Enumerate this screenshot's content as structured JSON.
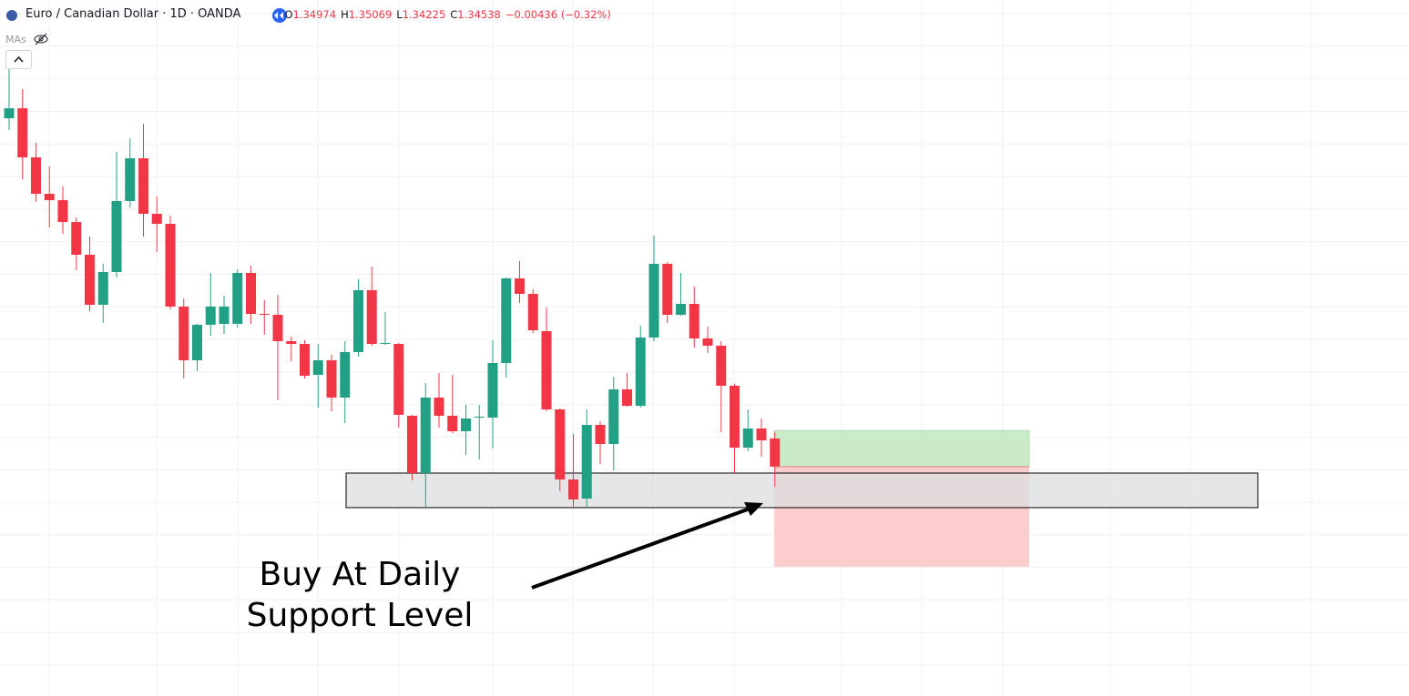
{
  "header": {
    "symbol": "Euro / Canadian Dollar · 1D · OANDA",
    "ohlc_letters": [
      "O",
      "H",
      "L",
      "C"
    ],
    "change": "−0.00436 (−0.32%)",
    "indicator": "MAs"
  },
  "chart_data": {
    "type": "candlestick",
    "categories": [
      null,
      null,
      null,
      null,
      null,
      null,
      null,
      null,
      null,
      null,
      null,
      null,
      null,
      null,
      null,
      null,
      null,
      null,
      null,
      null,
      null,
      null,
      null,
      null,
      null,
      null,
      null,
      null,
      null,
      null,
      null,
      null,
      null,
      null,
      null,
      null,
      null,
      null,
      null,
      null,
      null,
      null,
      null,
      null,
      null,
      null,
      null,
      null,
      null,
      null,
      null,
      null,
      null,
      null,
      null,
      null,
      null,
      null
    ],
    "open": [
      1.39922,
      1.40077,
      1.39318,
      1.38755,
      1.38657,
      1.38319,
      1.37813,
      1.3704,
      1.37546,
      1.38643,
      1.39304,
      1.38446,
      1.38291,
      1.37012,
      1.36182,
      1.36731,
      1.36745,
      1.36745,
      1.37532,
      1.36899,
      1.36885,
      1.36478,
      1.36435,
      1.35957,
      1.36182,
      1.35606,
      1.36309,
      1.37265,
      1.36435,
      1.36435,
      1.35325,
      1.34439,
      1.35606,
      1.35325,
      1.35086,
      1.35296,
      1.35296,
      1.3614,
      1.37448,
      1.37209,
      1.36632,
      1.35423,
      1.3434,
      1.34045,
      1.35184,
      1.34889,
      1.35732,
      1.35479,
      1.36534,
      1.37673,
      1.36885,
      1.37054,
      1.3652,
      1.36407,
      1.35789,
      1.34832,
      1.35128,
      1.34974
    ],
    "high": [
      1.40696,
      1.40372,
      1.39543,
      1.39177,
      1.38868,
      1.3839,
      1.38094,
      1.37673,
      1.39402,
      1.39613,
      1.39838,
      1.38713,
      1.38418,
      1.37138,
      1.36745,
      1.37532,
      1.37181,
      1.37588,
      1.37645,
      1.3711,
      1.37195,
      1.36548,
      1.36492,
      1.36435,
      1.36267,
      1.36478,
      1.37434,
      1.3763,
      1.36927,
      1.36449,
      1.35339,
      1.35831,
      1.35985,
      1.35957,
      1.35493,
      1.35493,
      1.36492,
      1.37462,
      1.37715,
      1.37279,
      1.36998,
      1.35437,
      1.35043,
      1.35423,
      1.3524,
      1.35929,
      1.35985,
      1.36717,
      1.38109,
      1.37701,
      1.37532,
      1.37321,
      1.36702,
      1.36478,
      1.35817,
      1.35423,
      1.35282,
      1.35069
    ],
    "low": [
      1.39739,
      1.3898,
      1.38629,
      1.38235,
      1.38137,
      1.37574,
      1.36942,
      1.36759,
      1.37462,
      1.38544,
      1.38094,
      1.37855,
      1.3697,
      1.35901,
      1.36014,
      1.36562,
      1.3659,
      1.36688,
      1.36745,
      1.36576,
      1.35564,
      1.36168,
      1.35901,
      1.35451,
      1.35395,
      1.35212,
      1.36239,
      1.36407,
      1.36421,
      1.35142,
      1.34326,
      1.33919,
      1.35142,
      1.35057,
      1.3472,
      1.3465,
      1.34818,
      1.35915,
      1.37068,
      1.36604,
      1.35395,
      1.34158,
      1.33919,
      1.33919,
      1.34579,
      1.34481,
      1.35465,
      1.35451,
      1.36478,
      1.36759,
      1.36871,
      1.36379,
      1.36295,
      1.35071,
      1.34439,
      1.34776,
      1.34692,
      1.34225
    ],
    "close": [
      1.40077,
      1.39318,
      1.38755,
      1.38657,
      1.38319,
      1.37813,
      1.3704,
      1.37546,
      1.38643,
      1.39304,
      1.38446,
      1.38291,
      1.37012,
      1.36182,
      1.36731,
      1.37012,
      1.37012,
      1.37532,
      1.36899,
      1.36885,
      1.36478,
      1.36435,
      1.35943,
      1.36182,
      1.35606,
      1.36309,
      1.37265,
      1.36435,
      1.36449,
      1.35339,
      1.34439,
      1.35606,
      1.35325,
      1.35086,
      1.35282,
      1.35311,
      1.3614,
      1.37448,
      1.37209,
      1.36646,
      1.35423,
      1.3434,
      1.34031,
      1.35184,
      1.34889,
      1.35732,
      1.35479,
      1.36534,
      1.37673,
      1.36885,
      1.37054,
      1.3652,
      1.36407,
      1.35789,
      1.34832,
      1.35128,
      1.34945,
      1.34538
    ],
    "up_color": "#22a085",
    "down_color": "#f23645",
    "ylim": [
      1.30994,
      1.4175
    ],
    "support_zone": {
      "ylim": [
        1.33905,
        1.34439
      ],
      "color": "#dcdde0"
    },
    "position": {
      "entry": 1.34537,
      "target": 1.35098,
      "stop": 1.32991,
      "target_color": "#c9ebc8",
      "stop_color": "#fccaca"
    },
    "annotation": [
      "Buy At Daily",
      "Support Level"
    ]
  }
}
